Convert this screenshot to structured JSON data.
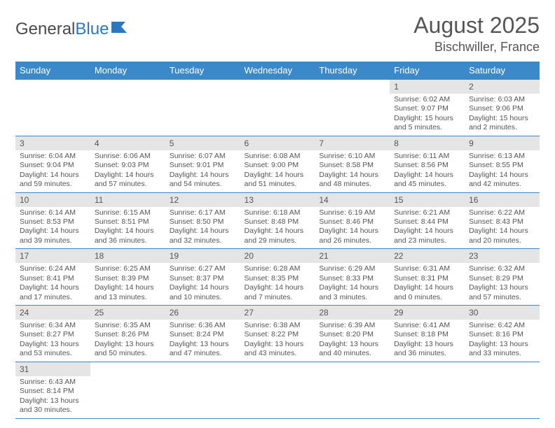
{
  "logo": {
    "text_a": "General",
    "text_b": "Blue",
    "icon_color": "#2b78c2"
  },
  "header": {
    "month": "August 2025",
    "location": "Bischwiller, France"
  },
  "colors": {
    "header_bg": "#3b89c9",
    "header_text": "#ffffff",
    "daynum_bg": "#e5e5e5",
    "border": "#3b89c9",
    "text": "#555555"
  },
  "weekdays": [
    "Sunday",
    "Monday",
    "Tuesday",
    "Wednesday",
    "Thursday",
    "Friday",
    "Saturday"
  ],
  "weeks": [
    [
      null,
      null,
      null,
      null,
      null,
      {
        "n": "1",
        "sunrise": "Sunrise: 6:02 AM",
        "sunset": "Sunset: 9:07 PM",
        "daylight": "Daylight: 15 hours and 5 minutes."
      },
      {
        "n": "2",
        "sunrise": "Sunrise: 6:03 AM",
        "sunset": "Sunset: 9:06 PM",
        "daylight": "Daylight: 15 hours and 2 minutes."
      }
    ],
    [
      {
        "n": "3",
        "sunrise": "Sunrise: 6:04 AM",
        "sunset": "Sunset: 9:04 PM",
        "daylight": "Daylight: 14 hours and 59 minutes."
      },
      {
        "n": "4",
        "sunrise": "Sunrise: 6:06 AM",
        "sunset": "Sunset: 9:03 PM",
        "daylight": "Daylight: 14 hours and 57 minutes."
      },
      {
        "n": "5",
        "sunrise": "Sunrise: 6:07 AM",
        "sunset": "Sunset: 9:01 PM",
        "daylight": "Daylight: 14 hours and 54 minutes."
      },
      {
        "n": "6",
        "sunrise": "Sunrise: 6:08 AM",
        "sunset": "Sunset: 9:00 PM",
        "daylight": "Daylight: 14 hours and 51 minutes."
      },
      {
        "n": "7",
        "sunrise": "Sunrise: 6:10 AM",
        "sunset": "Sunset: 8:58 PM",
        "daylight": "Daylight: 14 hours and 48 minutes."
      },
      {
        "n": "8",
        "sunrise": "Sunrise: 6:11 AM",
        "sunset": "Sunset: 8:56 PM",
        "daylight": "Daylight: 14 hours and 45 minutes."
      },
      {
        "n": "9",
        "sunrise": "Sunrise: 6:13 AM",
        "sunset": "Sunset: 8:55 PM",
        "daylight": "Daylight: 14 hours and 42 minutes."
      }
    ],
    [
      {
        "n": "10",
        "sunrise": "Sunrise: 6:14 AM",
        "sunset": "Sunset: 8:53 PM",
        "daylight": "Daylight: 14 hours and 39 minutes."
      },
      {
        "n": "11",
        "sunrise": "Sunrise: 6:15 AM",
        "sunset": "Sunset: 8:51 PM",
        "daylight": "Daylight: 14 hours and 36 minutes."
      },
      {
        "n": "12",
        "sunrise": "Sunrise: 6:17 AM",
        "sunset": "Sunset: 8:50 PM",
        "daylight": "Daylight: 14 hours and 32 minutes."
      },
      {
        "n": "13",
        "sunrise": "Sunrise: 6:18 AM",
        "sunset": "Sunset: 8:48 PM",
        "daylight": "Daylight: 14 hours and 29 minutes."
      },
      {
        "n": "14",
        "sunrise": "Sunrise: 6:19 AM",
        "sunset": "Sunset: 8:46 PM",
        "daylight": "Daylight: 14 hours and 26 minutes."
      },
      {
        "n": "15",
        "sunrise": "Sunrise: 6:21 AM",
        "sunset": "Sunset: 8:44 PM",
        "daylight": "Daylight: 14 hours and 23 minutes."
      },
      {
        "n": "16",
        "sunrise": "Sunrise: 6:22 AM",
        "sunset": "Sunset: 8:43 PM",
        "daylight": "Daylight: 14 hours and 20 minutes."
      }
    ],
    [
      {
        "n": "17",
        "sunrise": "Sunrise: 6:24 AM",
        "sunset": "Sunset: 8:41 PM",
        "daylight": "Daylight: 14 hours and 17 minutes."
      },
      {
        "n": "18",
        "sunrise": "Sunrise: 6:25 AM",
        "sunset": "Sunset: 8:39 PM",
        "daylight": "Daylight: 14 hours and 13 minutes."
      },
      {
        "n": "19",
        "sunrise": "Sunrise: 6:27 AM",
        "sunset": "Sunset: 8:37 PM",
        "daylight": "Daylight: 14 hours and 10 minutes."
      },
      {
        "n": "20",
        "sunrise": "Sunrise: 6:28 AM",
        "sunset": "Sunset: 8:35 PM",
        "daylight": "Daylight: 14 hours and 7 minutes."
      },
      {
        "n": "21",
        "sunrise": "Sunrise: 6:29 AM",
        "sunset": "Sunset: 8:33 PM",
        "daylight": "Daylight: 14 hours and 3 minutes."
      },
      {
        "n": "22",
        "sunrise": "Sunrise: 6:31 AM",
        "sunset": "Sunset: 8:31 PM",
        "daylight": "Daylight: 14 hours and 0 minutes."
      },
      {
        "n": "23",
        "sunrise": "Sunrise: 6:32 AM",
        "sunset": "Sunset: 8:29 PM",
        "daylight": "Daylight: 13 hours and 57 minutes."
      }
    ],
    [
      {
        "n": "24",
        "sunrise": "Sunrise: 6:34 AM",
        "sunset": "Sunset: 8:27 PM",
        "daylight": "Daylight: 13 hours and 53 minutes."
      },
      {
        "n": "25",
        "sunrise": "Sunrise: 6:35 AM",
        "sunset": "Sunset: 8:26 PM",
        "daylight": "Daylight: 13 hours and 50 minutes."
      },
      {
        "n": "26",
        "sunrise": "Sunrise: 6:36 AM",
        "sunset": "Sunset: 8:24 PM",
        "daylight": "Daylight: 13 hours and 47 minutes."
      },
      {
        "n": "27",
        "sunrise": "Sunrise: 6:38 AM",
        "sunset": "Sunset: 8:22 PM",
        "daylight": "Daylight: 13 hours and 43 minutes."
      },
      {
        "n": "28",
        "sunrise": "Sunrise: 6:39 AM",
        "sunset": "Sunset: 8:20 PM",
        "daylight": "Daylight: 13 hours and 40 minutes."
      },
      {
        "n": "29",
        "sunrise": "Sunrise: 6:41 AM",
        "sunset": "Sunset: 8:18 PM",
        "daylight": "Daylight: 13 hours and 36 minutes."
      },
      {
        "n": "30",
        "sunrise": "Sunrise: 6:42 AM",
        "sunset": "Sunset: 8:16 PM",
        "daylight": "Daylight: 13 hours and 33 minutes."
      }
    ],
    [
      {
        "n": "31",
        "sunrise": "Sunrise: 6:43 AM",
        "sunset": "Sunset: 8:14 PM",
        "daylight": "Daylight: 13 hours and 30 minutes."
      },
      null,
      null,
      null,
      null,
      null,
      null
    ]
  ]
}
